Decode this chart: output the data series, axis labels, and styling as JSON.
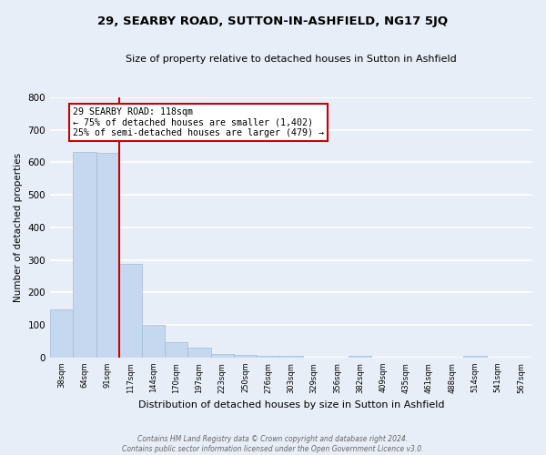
{
  "title": "29, SEARBY ROAD, SUTTON-IN-ASHFIELD, NG17 5JQ",
  "subtitle": "Size of property relative to detached houses in Sutton in Ashfield",
  "xlabel": "Distribution of detached houses by size in Sutton in Ashfield",
  "ylabel": "Number of detached properties",
  "bins": [
    "38sqm",
    "64sqm",
    "91sqm",
    "117sqm",
    "144sqm",
    "170sqm",
    "197sqm",
    "223sqm",
    "250sqm",
    "276sqm",
    "303sqm",
    "329sqm",
    "356sqm",
    "382sqm",
    "409sqm",
    "435sqm",
    "461sqm",
    "488sqm",
    "514sqm",
    "541sqm",
    "567sqm"
  ],
  "values": [
    147,
    632,
    628,
    289,
    101,
    46,
    31,
    10,
    7,
    5,
    5,
    0,
    0,
    5,
    0,
    0,
    0,
    0,
    5,
    0,
    0
  ],
  "bar_color": "#c5d8f0",
  "bar_edgecolor": "#a0bcd8",
  "vline_x_index": 3,
  "vline_color": "#cc0000",
  "annotation_text": "29 SEARBY ROAD: 118sqm\n← 75% of detached houses are smaller (1,402)\n25% of semi-detached houses are larger (479) →",
  "annotation_box_color": "#ffffff",
  "annotation_box_edgecolor": "#cc0000",
  "ylim": [
    0,
    800
  ],
  "yticks": [
    0,
    100,
    200,
    300,
    400,
    500,
    600,
    700,
    800
  ],
  "footer1": "Contains HM Land Registry data © Crown copyright and database right 2024.",
  "footer2": "Contains public sector information licensed under the Open Government Licence v3.0.",
  "bg_color": "#e8eef8",
  "grid_color": "#ffffff"
}
